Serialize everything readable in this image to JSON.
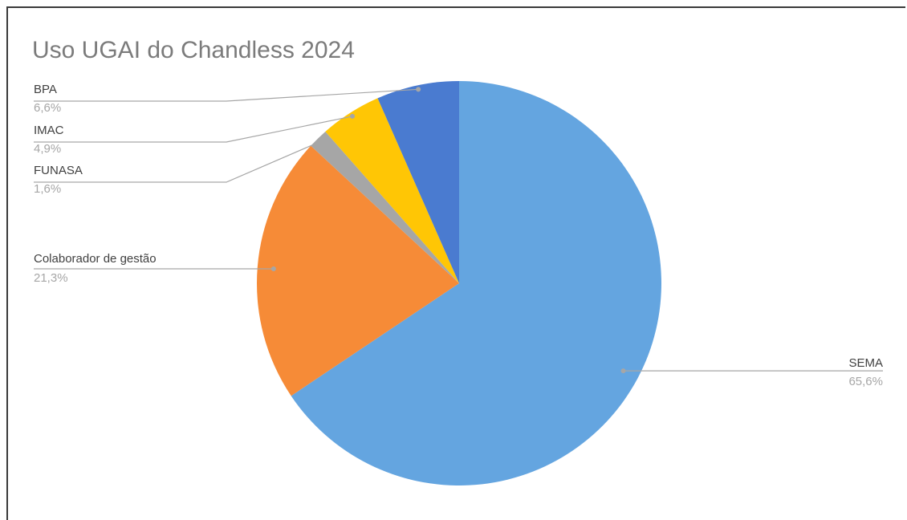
{
  "chart_data": {
    "type": "pie",
    "title": "Uso UGAI do Chandless 2024",
    "slices": [
      {
        "label": "SEMA",
        "value": 65.6,
        "value_label": "65,6%",
        "color": "#64a5e0"
      },
      {
        "label": "Colaborador de gestão",
        "value": 21.3,
        "value_label": "21,3%",
        "color": "#f68b37"
      },
      {
        "label": "FUNASA",
        "value": 1.6,
        "value_label": "1,6%",
        "color": "#a6a6a6"
      },
      {
        "label": "IMAC",
        "value": 4.9,
        "value_label": "4,9%",
        "color": "#ffc605"
      },
      {
        "label": "BPA",
        "value": 6.6,
        "value_label": "6,6%",
        "color": "#4a7bd0"
      }
    ],
    "start": "12 o'clock",
    "direction": "clockwise",
    "legend": "none",
    "data_labels": "outside with leader lines"
  }
}
